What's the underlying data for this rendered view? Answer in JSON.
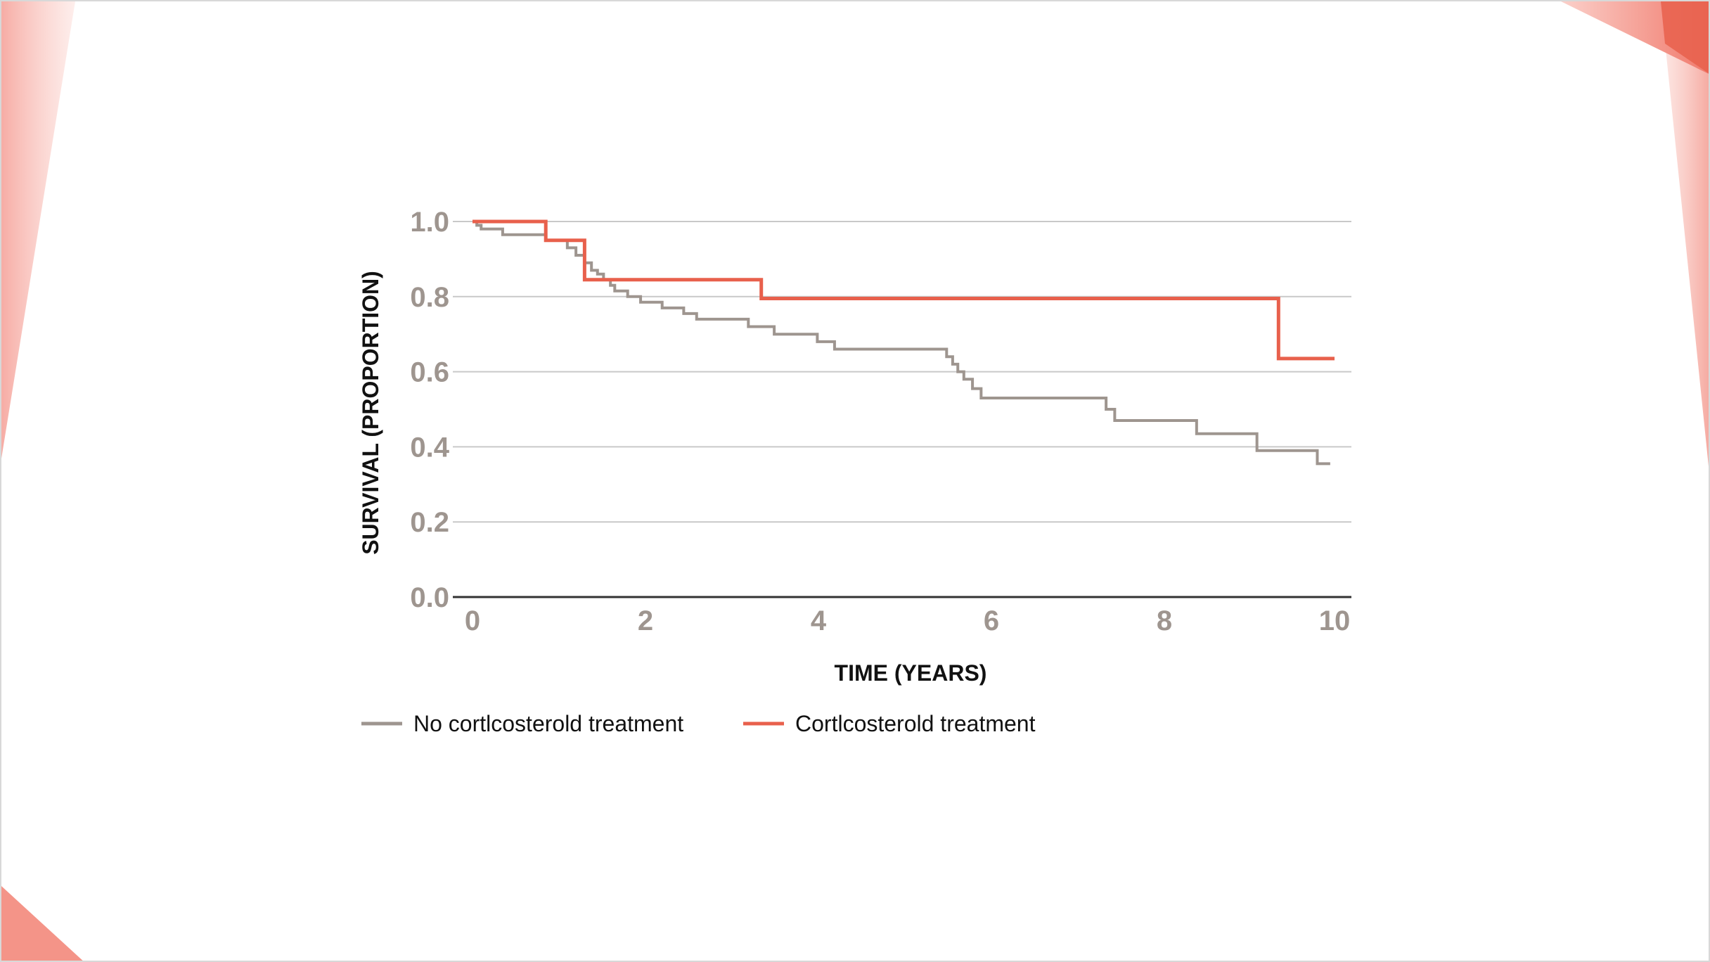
{
  "colors": {
    "background": "#ffffff",
    "grid": "#c9c9c9",
    "axis": "#333333",
    "tick_text": "#9e958f",
    "series_no_treatment": "#9e958f",
    "series_treatment": "#e8604c",
    "decor_pink": "#f08a80"
  },
  "chart_data": {
    "type": "line",
    "subtype": "step",
    "title": "",
    "xlabel": "TIME (YEARS)",
    "ylabel": "SURVIVAL (PROPORTION)",
    "xlim": [
      0,
      10
    ],
    "ylim": [
      0,
      1.0
    ],
    "x_ticks": [
      "0",
      "2",
      "4",
      "6",
      "8",
      "10"
    ],
    "y_ticks": [
      "0.0",
      "0.2",
      "0.4",
      "0.6",
      "0.8",
      "1.0"
    ],
    "grid": "horizontal",
    "legend_position": "bottom-left",
    "series": [
      {
        "name": "No cortlcosterold treatment",
        "color": "#9e958f",
        "x": [
          0,
          0.05,
          0.1,
          0.35,
          0.85,
          1.1,
          1.2,
          1.3,
          1.38,
          1.45,
          1.52,
          1.6,
          1.65,
          1.8,
          1.95,
          2.2,
          2.45,
          2.6,
          3.2,
          3.5,
          4.0,
          4.2,
          5.5,
          5.57,
          5.63,
          5.7,
          5.8,
          5.9,
          7.35,
          7.45,
          8.4,
          9.1,
          9.8,
          9.95
        ],
        "y": [
          1.0,
          0.99,
          0.98,
          0.965,
          0.95,
          0.93,
          0.91,
          0.89,
          0.87,
          0.86,
          0.845,
          0.83,
          0.815,
          0.8,
          0.785,
          0.77,
          0.755,
          0.74,
          0.72,
          0.7,
          0.68,
          0.66,
          0.64,
          0.62,
          0.6,
          0.58,
          0.555,
          0.53,
          0.5,
          0.47,
          0.435,
          0.39,
          0.355,
          0.355
        ]
      },
      {
        "name": "Cortlcosterold treatment",
        "color": "#e8604c",
        "x": [
          0,
          0.85,
          1.3,
          3.35,
          9.35,
          10.0
        ],
        "y": [
          1.0,
          0.95,
          0.845,
          0.795,
          0.635,
          0.635
        ]
      }
    ]
  }
}
